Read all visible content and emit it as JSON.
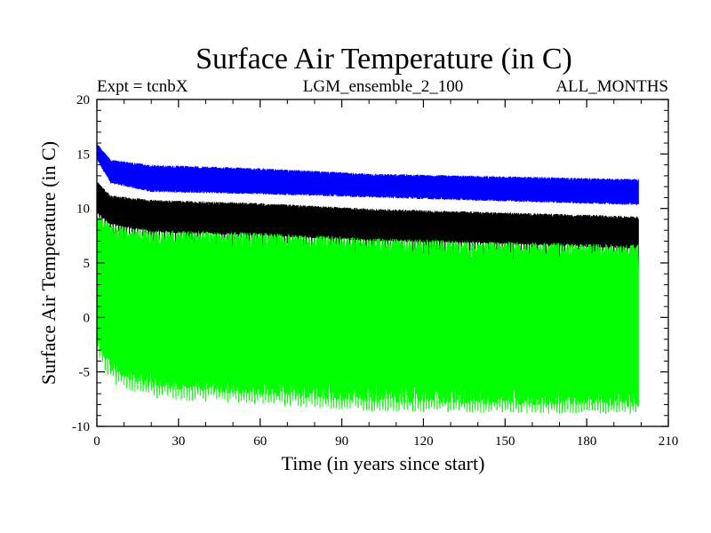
{
  "chart_data": {
    "type": "line",
    "title": "Surface Air Temperature (in C)",
    "subtitle_left": "Expt = tcnbX",
    "subtitle_center": "LGM_ensemble_2_100",
    "subtitle_right": "ALL_MONTHS",
    "xlabel": "Time (in years since start)",
    "ylabel": "Surface Air Temperature (in C)",
    "xlim": [
      0,
      210
    ],
    "ylim": [
      -10,
      20
    ],
    "xticks": [
      0,
      30,
      60,
      90,
      120,
      150,
      180,
      210
    ],
    "yticks": [
      -10,
      -5,
      0,
      5,
      10,
      15,
      20
    ],
    "x_start": 0,
    "x_end": 199,
    "sampling": "monthly",
    "series": [
      {
        "name": "Series 1 (blue)",
        "color": "#0000ff",
        "upper_keypoints": {
          "x": [
            0,
            5,
            20,
            60,
            100,
            140,
            199
          ],
          "y": [
            16,
            14.5,
            14,
            13.7,
            13.2,
            13,
            12.7
          ]
        },
        "lower_keypoints": {
          "x": [
            0,
            5,
            20,
            60,
            100,
            140,
            199
          ],
          "y": [
            14.5,
            12.3,
            11.5,
            11.3,
            11,
            10.7,
            10.3
          ]
        }
      },
      {
        "name": "Series 2 (black)",
        "color": "#000000",
        "upper_keypoints": {
          "x": [
            0,
            5,
            20,
            60,
            100,
            140,
            199
          ],
          "y": [
            12.5,
            11.2,
            10.8,
            10.5,
            10,
            9.7,
            9.3
          ]
        },
        "lower_keypoints": {
          "x": [
            0,
            5,
            20,
            60,
            100,
            140,
            199
          ],
          "y": [
            9.5,
            8.5,
            7.8,
            7.5,
            7,
            6.8,
            6.3
          ]
        },
        "dip_low": {
          "x": [
            0,
            5,
            20,
            60,
            100,
            140,
            199
          ],
          "y": [
            7.5,
            6,
            5.5,
            5,
            4.5,
            4,
            3.8
          ]
        }
      },
      {
        "name": "Series 3 (green)",
        "color": "#00ff00",
        "upper_keypoints": {
          "x": [
            0,
            5,
            20,
            60,
            100,
            140,
            199
          ],
          "y": [
            9.5,
            8.5,
            8,
            7.8,
            7.3,
            7,
            6.7
          ]
        },
        "lower_keypoints": {
          "x": [
            0,
            5,
            20,
            60,
            100,
            140,
            199
          ],
          "y": [
            -2.5,
            -5,
            -6.5,
            -7.2,
            -7.8,
            -8,
            -8.2
          ]
        },
        "extreme_low": {
          "x": [
            0,
            5,
            20,
            60,
            100,
            140,
            199
          ],
          "y": [
            -3.5,
            -6,
            -7.5,
            -8,
            -8.6,
            -8.8,
            -8.9
          ]
        }
      }
    ]
  }
}
